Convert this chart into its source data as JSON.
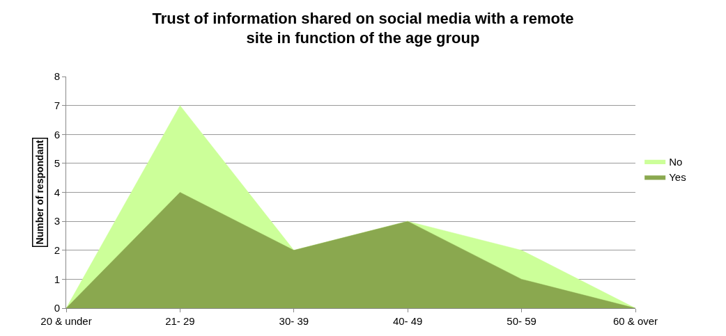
{
  "chart_data": {
    "type": "area",
    "title": "Trust of information shared on social media with a remote site in function of the age group",
    "ylabel": "Number of respondant",
    "categories": [
      "20 & under",
      "21- 29",
      "30- 39",
      "40- 49",
      "50- 59",
      "60 & over"
    ],
    "series": [
      {
        "name": "No",
        "color": "#ccff99",
        "values": [
          0,
          7,
          2,
          3,
          2,
          0
        ]
      },
      {
        "name": "Yes",
        "color": "#8aa84f",
        "values": [
          0,
          4,
          2,
          3,
          1,
          0
        ]
      }
    ],
    "ylim": [
      0,
      8
    ],
    "yticks": [
      0,
      1,
      2,
      3,
      4,
      5,
      6,
      7,
      8
    ],
    "grid": "y",
    "legend": "right"
  }
}
